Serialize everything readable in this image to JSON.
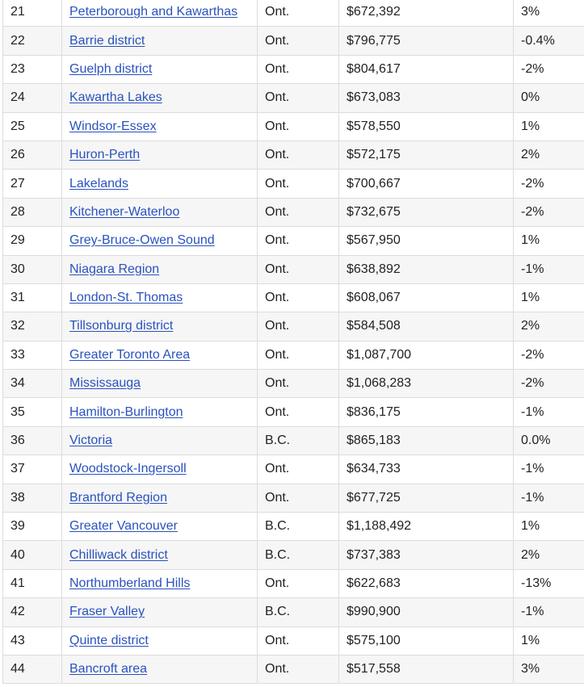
{
  "rows": [
    {
      "rank": "21",
      "region": "Peterborough and Kawarthas",
      "province": "Ont.",
      "price": "$672,392",
      "change": "3%"
    },
    {
      "rank": "22",
      "region": "Barrie district",
      "province": "Ont.",
      "price": "$796,775",
      "change": "-0.4%"
    },
    {
      "rank": "23",
      "region": "Guelph district",
      "province": "Ont.",
      "price": "$804,617",
      "change": "-2%"
    },
    {
      "rank": "24",
      "region": "Kawartha Lakes",
      "province": "Ont.",
      "price": "$673,083",
      "change": "0%"
    },
    {
      "rank": "25",
      "region": "Windsor-Essex",
      "province": "Ont.",
      "price": "$578,550",
      "change": "1%"
    },
    {
      "rank": "26",
      "region": "Huron-Perth",
      "province": "Ont.",
      "price": "$572,175",
      "change": "2%"
    },
    {
      "rank": "27",
      "region": "Lakelands",
      "province": "Ont.",
      "price": "$700,667",
      "change": "-2%"
    },
    {
      "rank": "28",
      "region": "Kitchener-Waterloo",
      "province": "Ont.",
      "price": "$732,675",
      "change": "-2%"
    },
    {
      "rank": "29",
      "region": "Grey-Bruce-Owen Sound",
      "province": "Ont.",
      "price": "$567,950",
      "change": "1%"
    },
    {
      "rank": "30",
      "region": "Niagara Region",
      "province": "Ont.",
      "price": "$638,892",
      "change": "-1%"
    },
    {
      "rank": "31",
      "region": "London-St. Thomas",
      "province": "Ont.",
      "price": "$608,067",
      "change": "1%"
    },
    {
      "rank": "32",
      "region": "Tillsonburg district",
      "province": "Ont.",
      "price": "$584,508",
      "change": "2%"
    },
    {
      "rank": "33",
      "region": "Greater Toronto Area",
      "province": "Ont.",
      "price": "$1,087,700",
      "change": "-2%"
    },
    {
      "rank": "34",
      "region": "Mississauga",
      "province": "Ont.",
      "price": "$1,068,283",
      "change": "-2%"
    },
    {
      "rank": "35",
      "region": "Hamilton-Burlington",
      "province": "Ont.",
      "price": "$836,175",
      "change": "-1%"
    },
    {
      "rank": "36",
      "region": "Victoria",
      "province": "B.C.",
      "price": "$865,183",
      "change": "0.0%"
    },
    {
      "rank": "37",
      "region": "Woodstock-Ingersoll",
      "province": "Ont.",
      "price": "$634,733",
      "change": "-1%"
    },
    {
      "rank": "38",
      "region": "Brantford Region",
      "province": "Ont.",
      "price": "$677,725",
      "change": "-1%"
    },
    {
      "rank": "39",
      "region": "Greater Vancouver",
      "province": "B.C.",
      "price": "$1,188,492",
      "change": "1%"
    },
    {
      "rank": "40",
      "region": "Chilliwack district",
      "province": "B.C.",
      "price": "$737,383",
      "change": "2%"
    },
    {
      "rank": "41",
      "region": "Northumberland Hills",
      "province": "Ont.",
      "price": "$622,683",
      "change": "-13%"
    },
    {
      "rank": "42",
      "region": "Fraser Valley",
      "province": "B.C.",
      "price": "$990,900",
      "change": "-1%"
    },
    {
      "rank": "43",
      "region": "Quinte district",
      "province": "Ont.",
      "price": "$575,100",
      "change": "1%"
    },
    {
      "rank": "44",
      "region": "Bancroft area",
      "province": "Ont.",
      "price": "$517,558",
      "change": "3%"
    }
  ],
  "colors": {
    "link": "#2a52be",
    "border": "#dcdcdc",
    "row_alt": "#f6f6f6",
    "text": "#222222"
  }
}
